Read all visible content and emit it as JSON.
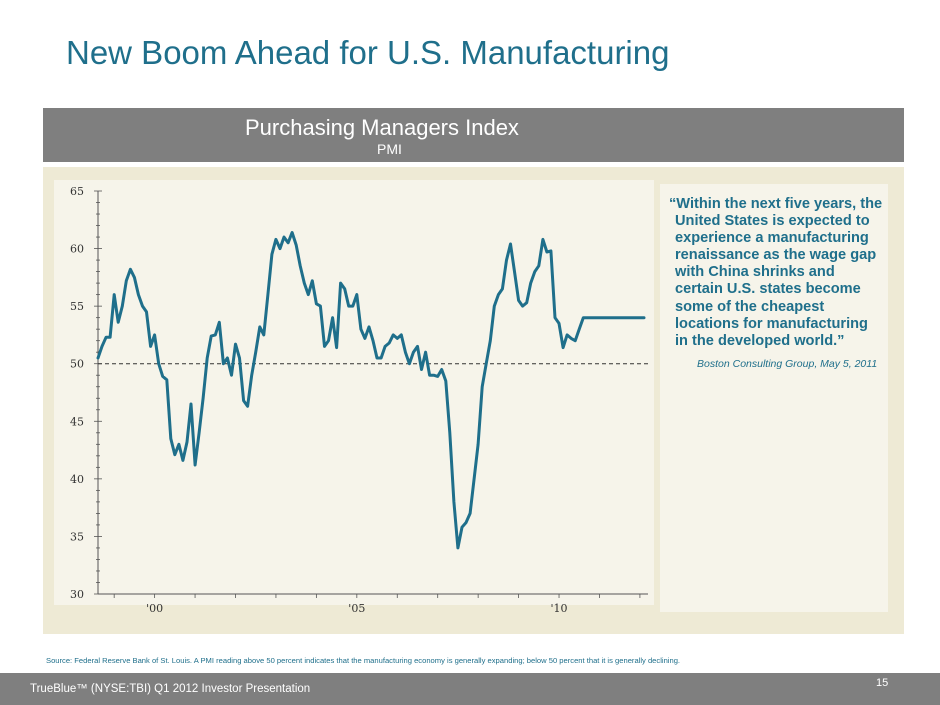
{
  "slide": {
    "title": "New Boom Ahead for U.S. Manufacturing",
    "source": "Source: Federal Reserve Bank of St. Louis. A PMI reading above 50 percent indicates that the manufacturing economy is generally expanding; below 50 percent that it is generally declining.",
    "footer": "TrueBlue™ (NYSE:TBI) Q1 2012 Investor Presentation",
    "page_number": "15"
  },
  "quote": {
    "lines": [
      "“Within the next five years, the",
      "United States is expected to",
      "experience a manufacturing",
      "renaissance as the wage gap",
      "with China shrinks and",
      "certain U.S. states become",
      "some of the cheapest",
      "locations for manufacturing",
      "in the developed world.”"
    ],
    "attribution": "Boston Consulting Group, May 5, 2011"
  },
  "colors": {
    "title": "#1f6f8b",
    "band": "#7f7f7f",
    "panel": "#eeead5",
    "plot_bg": "#f6f4ea",
    "line": "#1f6f8b",
    "reference_line": "#333333"
  },
  "chart_data": {
    "type": "line",
    "title": "Purchasing Managers Index",
    "subtitle": "PMI",
    "xlabel": "",
    "ylabel": "",
    "xlim": [
      1998.6,
      2012.2
    ],
    "ylim": [
      30,
      65
    ],
    "yticks": [
      30,
      35,
      40,
      45,
      50,
      55,
      60,
      65
    ],
    "xticks": [
      {
        "value": 2000,
        "label": "'00"
      },
      {
        "value": 2005,
        "label": "'05"
      },
      {
        "value": 2010,
        "label": "'10"
      }
    ],
    "reference_line": {
      "value": 50,
      "style": "dashed"
    },
    "grid": false,
    "legend": "none",
    "series": [
      {
        "name": "",
        "x": [
          1998.6,
          1998.7,
          1998.8,
          1998.9,
          1999.0,
          1999.1,
          1999.2,
          1999.3,
          1999.4,
          1999.5,
          1999.6,
          1999.7,
          1999.8,
          1999.9,
          2000.0,
          2000.1,
          2000.2,
          2000.3,
          2000.4,
          2000.5,
          2000.6,
          2000.7,
          2000.8,
          2000.9,
          2001.0,
          2001.1,
          2001.2,
          2001.3,
          2001.4,
          2001.5,
          2001.6,
          2001.7,
          2001.8,
          2001.9,
          2002.0,
          2002.1,
          2002.2,
          2002.3,
          2002.4,
          2002.5,
          2002.6,
          2002.7,
          2002.8,
          2002.9,
          2003.0,
          2003.1,
          2003.2,
          2003.3,
          2003.4,
          2003.5,
          2003.6,
          2003.7,
          2003.8,
          2003.9,
          2004.0,
          2004.1,
          2004.2,
          2004.3,
          2004.4,
          2004.5,
          2004.6,
          2004.7,
          2004.8,
          2004.9,
          2005.0,
          2005.1,
          2005.2,
          2005.3,
          2005.4,
          2005.5,
          2005.6,
          2005.7,
          2005.8,
          2005.9,
          2006.0,
          2006.1,
          2006.2,
          2006.3,
          2006.4,
          2006.5,
          2006.6,
          2006.7,
          2006.8,
          2006.9,
          2007.0,
          2007.1,
          2007.2,
          2007.3,
          2007.4,
          2007.5,
          2007.6,
          2007.7,
          2007.8,
          2007.9,
          2008.0,
          2008.1,
          2008.2,
          2008.3,
          2008.4,
          2008.5,
          2008.6,
          2008.7,
          2008.8,
          2008.9,
          2009.0,
          2009.1,
          2009.2,
          2009.3,
          2009.4,
          2009.5,
          2009.6,
          2009.7,
          2009.8,
          2009.9,
          2010.0,
          2010.1,
          2010.2,
          2010.3,
          2010.4,
          2010.5,
          2010.6,
          2010.7,
          2010.8,
          2010.9,
          2011.0,
          2011.1,
          2011.2,
          2011.3,
          2011.4,
          2011.5,
          2011.6,
          2011.7,
          2011.8,
          2011.9,
          2012.0,
          2012.1
        ],
        "values": [
          50.5,
          51.5,
          52.3,
          52.3,
          56.0,
          53.6,
          55.0,
          57.2,
          58.2,
          57.5,
          56.0,
          55.0,
          54.5,
          51.5,
          52.5,
          50.0,
          48.9,
          48.6,
          43.5,
          42.1,
          43.0,
          41.6,
          43.2,
          46.5,
          41.2,
          44.0,
          47.0,
          50.5,
          52.4,
          52.5,
          53.6,
          50.0,
          50.5,
          49.0,
          51.7,
          50.5,
          46.8,
          46.3,
          49.0,
          51.0,
          53.2,
          52.5,
          56.0,
          59.5,
          60.8,
          60.0,
          61.0,
          60.5,
          61.4,
          60.3,
          58.5,
          57.0,
          56.0,
          57.2,
          55.2,
          55.0,
          51.5,
          52.0,
          54.0,
          51.4,
          57.0,
          56.5,
          55.0,
          55.0,
          56.0,
          53.0,
          52.2,
          53.2,
          52.0,
          50.5,
          50.5,
          51.5,
          51.8,
          52.5,
          52.2,
          52.5,
          51.0,
          50.0,
          51.0,
          51.5,
          49.5,
          51.0,
          49.0,
          49.0,
          48.9,
          49.5,
          48.5,
          44.0,
          38.0,
          34.0,
          35.8,
          36.2,
          37.0,
          40.0,
          43.0,
          48.0,
          50.0,
          52.0,
          55.0,
          56.0,
          56.5,
          59.0,
          60.4,
          58.0,
          55.5,
          55.0,
          55.3,
          57.0,
          58.0,
          58.5,
          60.8,
          59.7,
          59.8,
          54.0,
          53.5,
          51.4,
          52.5,
          52.2,
          52.0,
          53.0,
          54.0,
          54.0,
          54.0,
          54.0,
          54.0,
          54.0,
          54.0,
          54.0,
          54.0,
          54.0,
          54.0,
          54.0,
          54.0,
          54.0,
          54.0,
          54.0
        ]
      }
    ]
  }
}
